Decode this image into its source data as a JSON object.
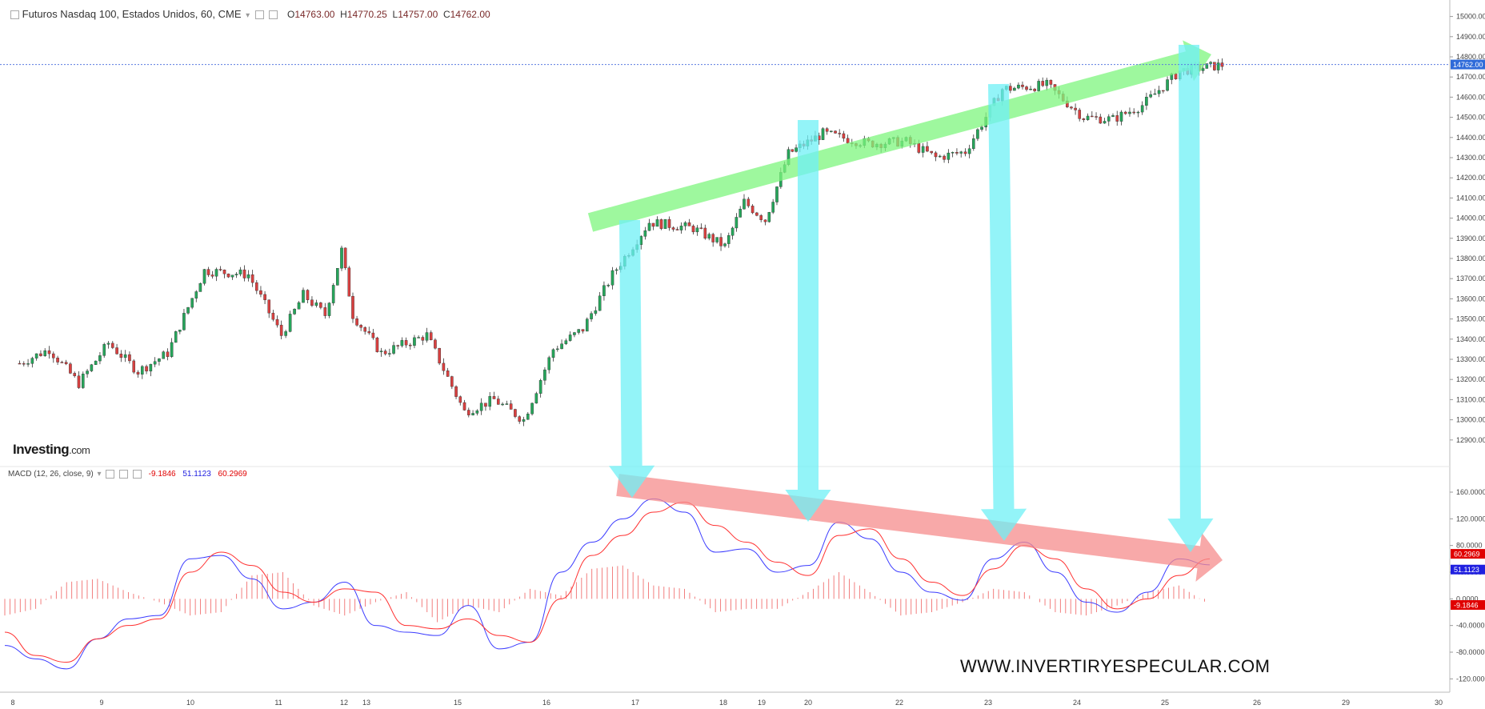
{
  "header": {
    "instrument": "Futuros Nasdaq 100, Estados Unidos, 60, CME",
    "open_label": "O",
    "open": "14763.00",
    "high_label": "H",
    "high": "14770.25",
    "low_label": "L",
    "low": "14757.00",
    "close_label": "C",
    "close": "14762.00"
  },
  "macd_header": {
    "label": "MACD (12, 26, close, 9)",
    "hist_value": "-9.1846",
    "macd_value": "51.1123",
    "signal_value": "60.2969"
  },
  "logo": {
    "brand": "Investing",
    "suffix": ".com"
  },
  "watermark": "WWW.INVERTIRYESPECULAR.COM",
  "colors": {
    "up_candle": "#26a65b",
    "down_candle": "#d94040",
    "macd_line": "#3b3bff",
    "signal_line": "#ff3030",
    "histogram": "#f07070",
    "price_label_bg": "#2f6bd9",
    "up_arrow": "#7df57d",
    "down_arrow": "#f58c8c",
    "vertical_arrows": "#6ff0f5"
  },
  "chart_data": [
    {
      "type": "candlestick",
      "title": "Futuros Nasdaq 100, Estados Unidos, 60, CME",
      "ylim": [
        12800,
        15050
      ],
      "y_ticks": [
        "15000.00",
        "14900.00",
        "14800.00",
        "14700.00",
        "14600.00",
        "14500.00",
        "14400.00",
        "14300.00",
        "14200.00",
        "14100.00",
        "14000.00",
        "13900.00",
        "13800.00",
        "13700.00",
        "13600.00",
        "13500.00",
        "13400.00",
        "13300.00",
        "13200.00",
        "13100.00",
        "13000.00",
        "12900.00"
      ],
      "x_ticks": [
        "8",
        "9",
        "10",
        "11",
        "12",
        "13",
        "15",
        "16",
        "17",
        "18",
        "19",
        "20",
        "22",
        "23",
        "24",
        "25",
        "26",
        "29",
        "30"
      ],
      "current_price_label": "14762.00",
      "close_path": [
        [
          "8",
          13280
        ],
        [
          "8",
          13350
        ],
        [
          "8",
          13180
        ],
        [
          "9",
          13380
        ],
        [
          "9",
          13240
        ],
        [
          "9",
          13330
        ],
        [
          "10",
          13740
        ],
        [
          "10",
          13720
        ],
        [
          "11",
          13420
        ],
        [
          "11",
          13620
        ],
        [
          "11",
          13520
        ],
        [
          "12",
          13840
        ],
        [
          "12",
          13520
        ],
        [
          "13",
          13330
        ],
        [
          "13",
          13420
        ],
        [
          "15",
          13040
        ],
        [
          "15",
          13100
        ],
        [
          "15",
          13000
        ],
        [
          "16",
          13350
        ],
        [
          "16",
          13450
        ],
        [
          "16",
          13720
        ],
        [
          "17",
          13980
        ],
        [
          "17",
          13950
        ],
        [
          "18",
          13860
        ],
        [
          "18",
          14080
        ],
        [
          "19",
          13990
        ],
        [
          "19",
          14320
        ],
        [
          "20",
          14420
        ],
        [
          "20",
          14370
        ],
        [
          "22",
          14380
        ],
        [
          "22",
          14300
        ],
        [
          "22",
          14330
        ],
        [
          "23",
          14640
        ],
        [
          "23",
          14660
        ],
        [
          "24",
          14500
        ],
        [
          "24",
          14490
        ],
        [
          "24",
          14560
        ],
        [
          "25",
          14730
        ],
        [
          "25",
          14762
        ]
      ]
    },
    {
      "type": "line",
      "title": "MACD (12, 26, close, 9)",
      "ylim": [
        -140,
        190
      ],
      "y_ticks": [
        "160.0000",
        "120.0000",
        "80.0000",
        "40.0000",
        "0.0000",
        "-40.0000",
        "-80.0000",
        "-120.0000"
      ],
      "series": [
        {
          "name": "MACD",
          "last_value": "51.1123",
          "values": [
            -70,
            -90,
            -105,
            -60,
            -30,
            -25,
            60,
            65,
            30,
            -15,
            -5,
            25,
            -40,
            -50,
            -55,
            -10,
            -75,
            -65,
            40,
            85,
            120,
            150,
            130,
            70,
            75,
            40,
            50,
            115,
            90,
            40,
            10,
            -2,
            60,
            85,
            40,
            -5,
            -20,
            10,
            60,
            51
          ]
        },
        {
          "name": "Signal",
          "last_value": "60.2969",
          "values": [
            -50,
            -85,
            -95,
            -60,
            -40,
            -30,
            40,
            70,
            50,
            10,
            -5,
            15,
            10,
            -40,
            -45,
            -30,
            -55,
            -65,
            0,
            65,
            95,
            130,
            145,
            110,
            85,
            55,
            35,
            95,
            105,
            60,
            25,
            5,
            45,
            80,
            60,
            15,
            -15,
            0,
            35,
            60
          ]
        },
        {
          "name": "Histogram",
          "last_value": "-9.1846",
          "values": [
            -25,
            -15,
            25,
            30,
            10,
            -5,
            -25,
            -20,
            35,
            40,
            -10,
            -25,
            -5,
            10,
            -35,
            -10,
            -20,
            15,
            5,
            45,
            50,
            20,
            15,
            -20,
            -15,
            -15,
            10,
            40,
            10,
            -25,
            -20,
            -5,
            15,
            10,
            -20,
            -25,
            -10,
            10,
            20,
            -9
          ]
        }
      ]
    }
  ]
}
